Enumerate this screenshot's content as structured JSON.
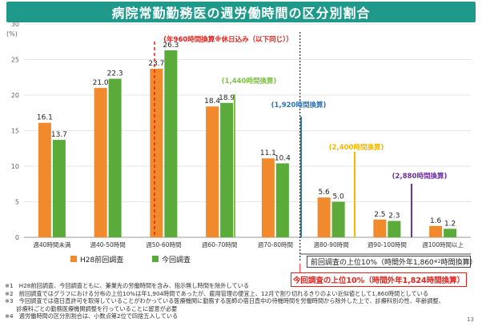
{
  "header": {
    "title": "病院常勤勤務医の週労働時間の区分別割合"
  },
  "chart_data": {
    "type": "bar",
    "title": "病院常勤勤務医の週労働時間の区分別割合",
    "ylabel": "(%)",
    "ylim": [
      0,
      30
    ],
    "yticks": [
      0,
      5,
      10,
      15,
      20,
      25,
      30
    ],
    "categories": [
      "週40時間未満",
      "週40-50時間",
      "週50-60時間",
      "週60-70時間",
      "週70-80時間",
      "週80-90時間",
      "週90-100時間",
      "週100時間以上"
    ],
    "series": [
      {
        "name": "H28前回調査",
        "color": "#f08a2c",
        "values": [
          16.1,
          21.0,
          23.7,
          18.4,
          11.1,
          5.6,
          2.5,
          1.6
        ]
      },
      {
        "name": "今回調査",
        "color": "#5aab3a",
        "values": [
          13.7,
          22.3,
          26.3,
          18.9,
          10.4,
          5.0,
          2.3,
          1.2
        ]
      }
    ],
    "annotations": [
      {
        "text": "(年960時間換算※休日込み（以下同じ））",
        "color": "#e8201a",
        "after_category": 2
      },
      {
        "text": "(1,440時間換算)",
        "color": "#7dc242",
        "after_category": 3
      },
      {
        "text": "(1,920時間換算)",
        "color": "#2e74b5",
        "after_category": 4
      },
      {
        "text": "(2,400時間換算)",
        "color": "#f5b800",
        "after_category": 5
      },
      {
        "text": "(2,880時間換算)",
        "color": "#7030a0",
        "after_category": 6
      }
    ]
  },
  "boxes": {
    "prev_top10": "前回調査の上位10%（時間外年1,860",
    "prev_top10_super": "※2",
    "prev_top10_tail": "時間換算）",
    "curr_top10": "今回調査の上位10%（時間外年1,824時間換算）"
  },
  "notes": [
    "※1　H28前回調査、今回調査ともに、兼業先の労働時間を含み、指示無し時間を除外している",
    "※2　前回調査ではグラフにおける分布の上位10%は年1,904時間であったが、雇用管理の便宜上、12月で割り切れるきりのよい近似値として1,860時間としている",
    "※3　今回調査では宿日直許可を取得していることがわかっている医療機関に勤務する医師の宿日直中の待機時間を労働時間から除外した上で、診療科別の性、年齢調整、",
    "　　診療科ごとの勤務医療機関調整を行っていることに留意が必要",
    "※4　週労働時間の区分別割合は、小数点第2位で四捨五入している"
  ],
  "page_number": "13"
}
